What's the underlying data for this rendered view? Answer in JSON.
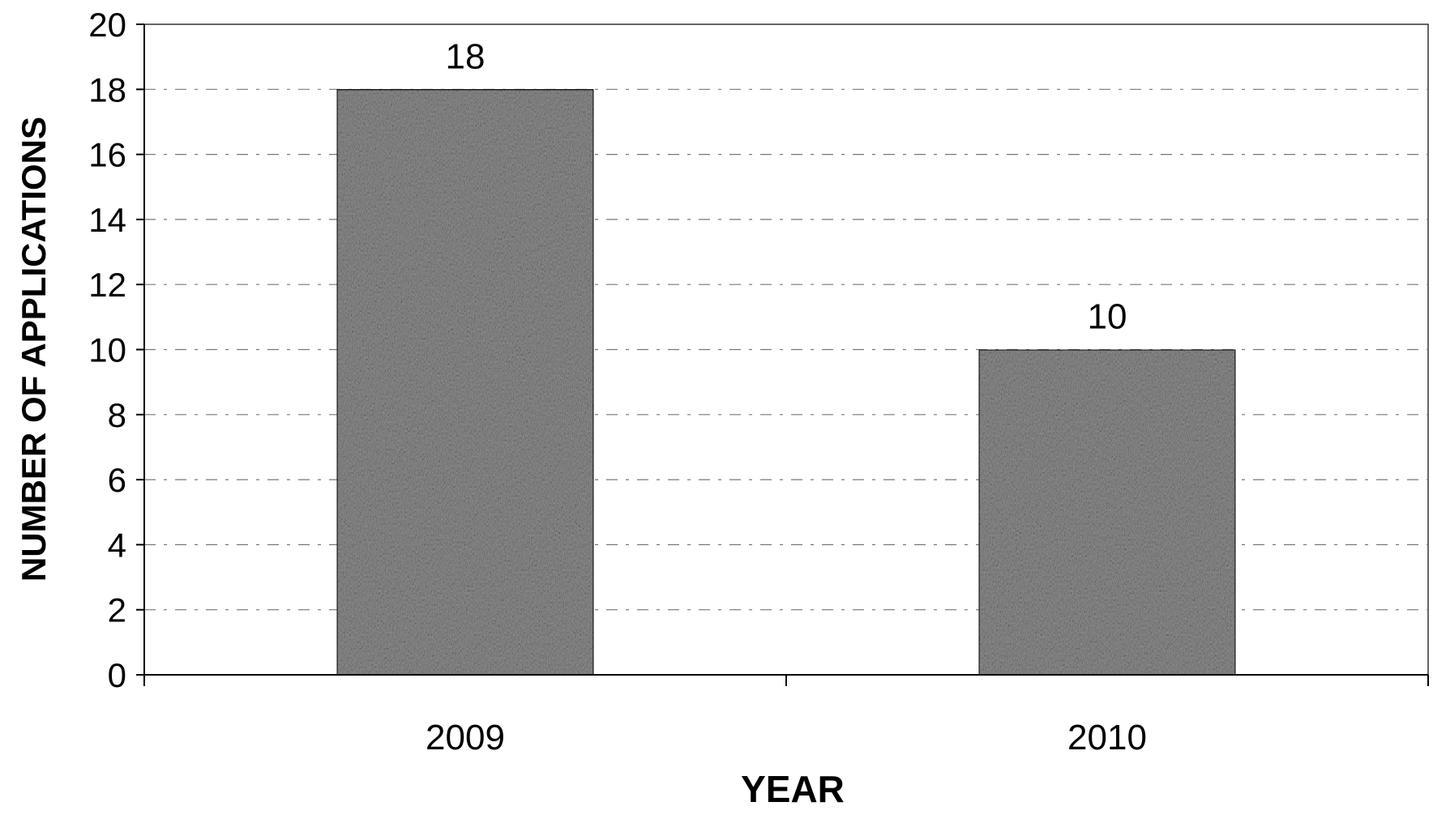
{
  "chart_data": {
    "type": "bar",
    "categories": [
      "2009",
      "2010"
    ],
    "values": [
      18,
      10
    ],
    "data_labels": [
      "18",
      "10"
    ],
    "title": "",
    "xlabel": "YEAR",
    "ylabel": "NUMBER OF APPLICATIONS",
    "ylim": [
      0,
      20
    ],
    "yticks": [
      "0",
      "2",
      "4",
      "6",
      "8",
      "10",
      "12",
      "14",
      "16",
      "18",
      "20"
    ],
    "grid": true,
    "legend": "none",
    "bar_fill": "#8c8c8c"
  }
}
